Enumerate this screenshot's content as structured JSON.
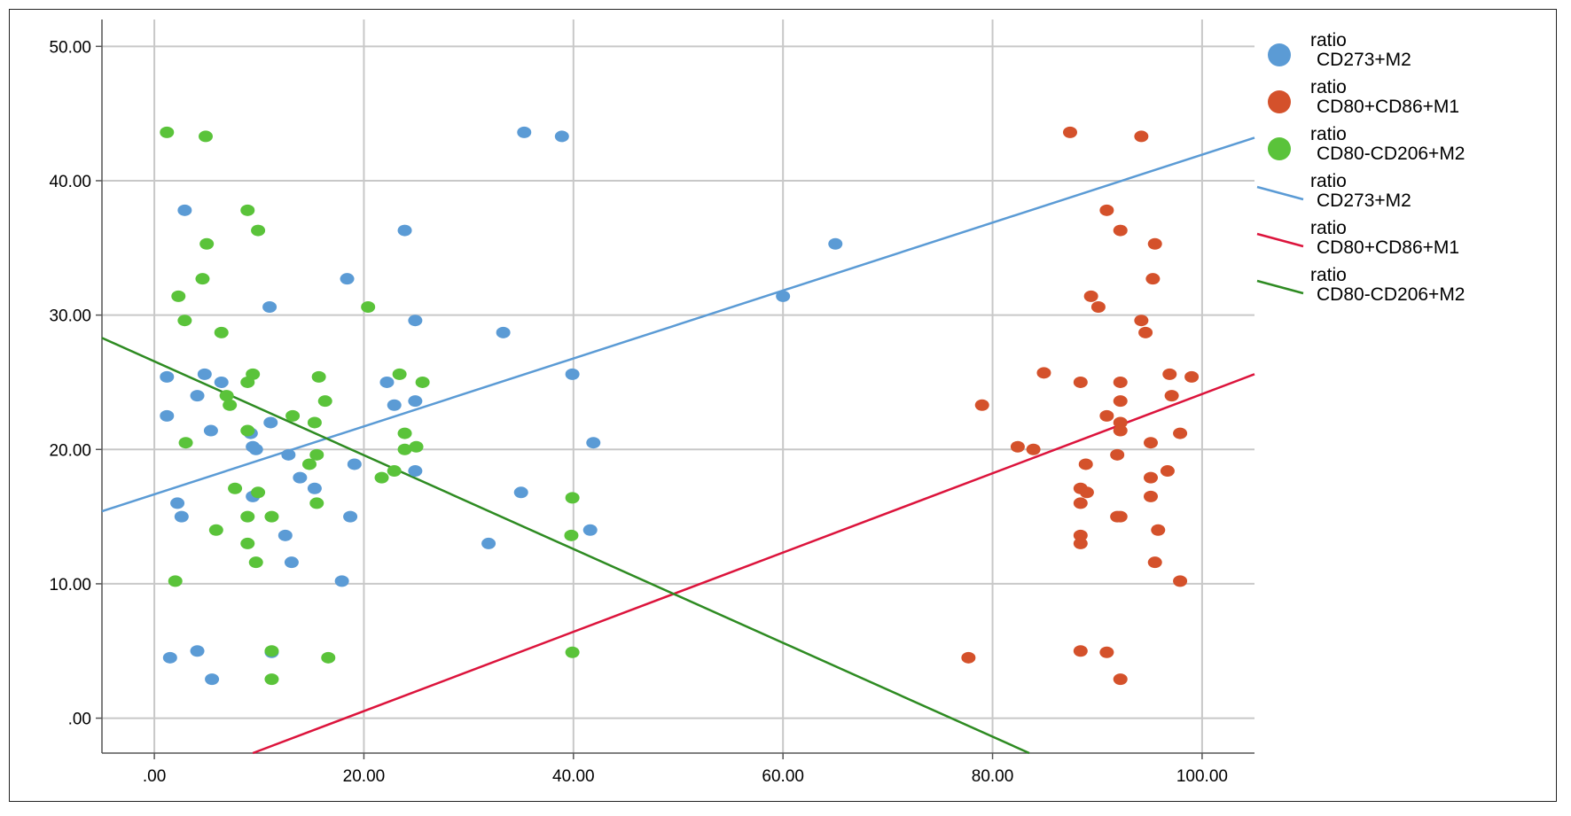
{
  "chart_data": {
    "type": "scatter",
    "title": "",
    "xlabel": "",
    "ylabel": "",
    "xlim": [
      -5,
      105
    ],
    "ylim": [
      -2.6,
      52
    ],
    "x_ticks": [
      ".00",
      "20.00",
      "40.00",
      "60.00",
      "80.00",
      "100.00"
    ],
    "x_tick_values": [
      0,
      20,
      40,
      60,
      80,
      100
    ],
    "y_ticks": [
      ".00",
      "10.00",
      "20.00",
      "30.00",
      "40.00",
      "50.00"
    ],
    "y_tick_values": [
      0,
      10,
      20,
      30,
      40,
      50
    ],
    "grid": true,
    "legend_placement": "right",
    "legend": [
      {
        "kind": "marker",
        "line1": "ratio",
        "line2": "CD273+M2",
        "color": "#5b9bd5"
      },
      {
        "kind": "marker",
        "line1": "ratio",
        "line2": "CD80+CD86+M1",
        "color": "#d4512b"
      },
      {
        "kind": "marker",
        "line1": "ratio",
        "line2": "CD80-CD206+M2",
        "color": "#5ac33a"
      },
      {
        "kind": "line",
        "line1": "ratio",
        "line2": "CD273+M2",
        "color": "#5b9bd5"
      },
      {
        "kind": "line",
        "line1": "ratio",
        "line2": "CD80+CD86+M1",
        "color": "#dc143c"
      },
      {
        "kind": "line",
        "line1": "ratio",
        "line2": "CD80-CD206+M2",
        "color": "#2e8b22"
      }
    ],
    "series": [
      {
        "name": "CD273+M2",
        "color": "#5b9bd5",
        "points": [
          [
            1.2,
            25.4
          ],
          [
            1.2,
            22.5
          ],
          [
            1.5,
            4.5
          ],
          [
            2.2,
            16.0
          ],
          [
            2.6,
            15.0
          ],
          [
            2.9,
            37.8
          ],
          [
            4.1,
            24.0
          ],
          [
            4.1,
            5.0
          ],
          [
            4.8,
            25.6
          ],
          [
            5.4,
            21.4
          ],
          [
            5.5,
            2.9
          ],
          [
            6.4,
            25.0
          ],
          [
            9.2,
            21.2
          ],
          [
            9.4,
            20.2
          ],
          [
            9.4,
            16.5
          ],
          [
            9.7,
            20.0
          ],
          [
            11.0,
            30.6
          ],
          [
            11.1,
            22.0
          ],
          [
            11.2,
            4.9
          ],
          [
            12.5,
            13.6
          ],
          [
            12.8,
            19.6
          ],
          [
            13.1,
            11.6
          ],
          [
            13.9,
            17.9
          ],
          [
            15.3,
            17.1
          ],
          [
            17.9,
            10.2
          ],
          [
            18.4,
            32.7
          ],
          [
            18.7,
            15.0
          ],
          [
            19.1,
            18.9
          ],
          [
            22.2,
            25.0
          ],
          [
            22.9,
            23.3
          ],
          [
            23.9,
            36.3
          ],
          [
            24.9,
            29.6
          ],
          [
            24.9,
            23.6
          ],
          [
            24.9,
            18.4
          ],
          [
            31.9,
            13.0
          ],
          [
            33.3,
            28.7
          ],
          [
            35.0,
            16.8
          ],
          [
            35.3,
            43.6
          ],
          [
            38.9,
            43.3
          ],
          [
            39.9,
            25.6
          ],
          [
            41.6,
            14.0
          ],
          [
            41.9,
            20.5
          ],
          [
            60.0,
            31.4
          ],
          [
            65.0,
            35.3
          ]
        ]
      },
      {
        "name": "CD80+CD86+M1",
        "color": "#d4512b",
        "points": [
          [
            77.7,
            4.5
          ],
          [
            79.0,
            23.3
          ],
          [
            82.4,
            20.2
          ],
          [
            83.9,
            20.0
          ],
          [
            84.9,
            25.7
          ],
          [
            87.4,
            43.6
          ],
          [
            88.4,
            25.0
          ],
          [
            88.4,
            17.1
          ],
          [
            88.4,
            16.0
          ],
          [
            88.4,
            13.6
          ],
          [
            88.4,
            13.0
          ],
          [
            88.4,
            5.0
          ],
          [
            88.9,
            18.9
          ],
          [
            89.0,
            16.8
          ],
          [
            89.4,
            31.4
          ],
          [
            90.1,
            30.6
          ],
          [
            90.9,
            37.8
          ],
          [
            90.9,
            22.5
          ],
          [
            90.9,
            4.9
          ],
          [
            91.9,
            19.6
          ],
          [
            91.9,
            15.0
          ],
          [
            92.2,
            36.3
          ],
          [
            92.2,
            25.0
          ],
          [
            92.2,
            23.6
          ],
          [
            92.2,
            22.0
          ],
          [
            92.2,
            21.4
          ],
          [
            92.2,
            15.0
          ],
          [
            92.2,
            2.9
          ],
          [
            94.2,
            43.3
          ],
          [
            94.2,
            29.6
          ],
          [
            94.6,
            28.7
          ],
          [
            95.1,
            20.5
          ],
          [
            95.1,
            17.9
          ],
          [
            95.1,
            16.5
          ],
          [
            95.3,
            32.7
          ],
          [
            95.5,
            35.3
          ],
          [
            95.5,
            11.6
          ],
          [
            95.8,
            14.0
          ],
          [
            96.7,
            18.4
          ],
          [
            96.9,
            25.6
          ],
          [
            97.1,
            24.0
          ],
          [
            97.9,
            21.2
          ],
          [
            97.9,
            10.2
          ],
          [
            99.0,
            25.4
          ]
        ]
      },
      {
        "name": "CD80-CD206+M2",
        "color": "#5ac33a",
        "points": [
          [
            1.2,
            43.6
          ],
          [
            2.0,
            10.2
          ],
          [
            2.3,
            31.4
          ],
          [
            2.9,
            29.6
          ],
          [
            3.0,
            20.5
          ],
          [
            4.6,
            32.7
          ],
          [
            4.9,
            43.3
          ],
          [
            5.0,
            35.3
          ],
          [
            5.9,
            14.0
          ],
          [
            6.4,
            28.7
          ],
          [
            6.9,
            24.0
          ],
          [
            7.2,
            23.3
          ],
          [
            7.7,
            17.1
          ],
          [
            8.9,
            37.8
          ],
          [
            8.9,
            25.0
          ],
          [
            8.9,
            21.4
          ],
          [
            8.9,
            15.0
          ],
          [
            8.9,
            13.0
          ],
          [
            9.4,
            25.6
          ],
          [
            9.7,
            11.6
          ],
          [
            9.9,
            36.3
          ],
          [
            9.9,
            16.8
          ],
          [
            11.2,
            15.0
          ],
          [
            11.2,
            5.0
          ],
          [
            11.2,
            2.9
          ],
          [
            13.2,
            22.5
          ],
          [
            14.8,
            18.9
          ],
          [
            15.3,
            22.0
          ],
          [
            15.5,
            19.6
          ],
          [
            15.5,
            16.0
          ],
          [
            15.7,
            25.4
          ],
          [
            16.3,
            23.6
          ],
          [
            16.6,
            4.5
          ],
          [
            20.4,
            30.6
          ],
          [
            21.7,
            17.9
          ],
          [
            22.9,
            18.4
          ],
          [
            23.4,
            25.6
          ],
          [
            23.9,
            21.2
          ],
          [
            23.9,
            20.0
          ],
          [
            25.0,
            20.2
          ],
          [
            25.6,
            25.0
          ],
          [
            39.8,
            13.6
          ],
          [
            39.9,
            16.4
          ],
          [
            39.9,
            4.9
          ]
        ]
      }
    ],
    "fit_lines": [
      {
        "name": "CD273+M2",
        "color": "#5b9bd5",
        "from": [
          -5,
          15.4
        ],
        "to": [
          105,
          43.2
        ]
      },
      {
        "name": "CD80+CD86+M1",
        "color": "#dc143c",
        "from": [
          9.4,
          -2.6
        ],
        "to": [
          105,
          25.6
        ]
      },
      {
        "name": "CD80-CD206+M2",
        "color": "#2e8b22",
        "from": [
          -5,
          28.3
        ],
        "to": [
          83.5,
          -2.6
        ]
      }
    ]
  }
}
